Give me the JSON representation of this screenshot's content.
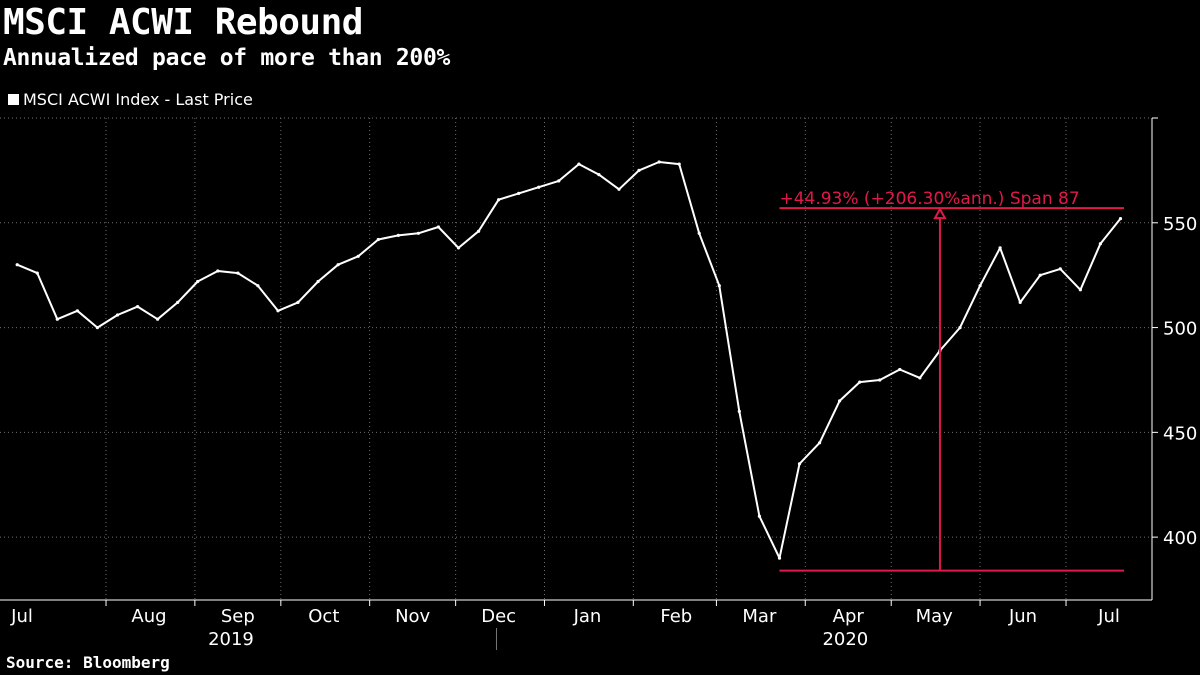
{
  "title": "MSCI ACWI Rebound",
  "subtitle": "Annualized pace of more than 200%",
  "legend": {
    "label": "MSCI ACWI Index - Last Price"
  },
  "source": "Source: Bloomberg",
  "colors": {
    "background": "#000000",
    "series": "#ffffff",
    "annotation": "#e0194b",
    "grid": "#6e6e6e"
  },
  "annotation": {
    "label": "+44.93% (+206.30%ann.) Span 87",
    "low": 384,
    "high": 557
  },
  "chart_data": {
    "type": "line",
    "title": "MSCI ACWI Rebound",
    "subtitle": "Annualized pace of more than 200%",
    "xlabel": "",
    "ylabel": "",
    "ylim": [
      370,
      600
    ],
    "yticks": [
      400,
      450,
      500,
      550
    ],
    "y_axis_side": "right",
    "grid": true,
    "legend_position": "top-left",
    "x_month_labels": [
      "Jul",
      "Aug",
      "Sep",
      "Oct",
      "Nov",
      "Dec",
      "Jan",
      "Feb",
      "Mar",
      "Apr",
      "May",
      "Jun",
      "Jul"
    ],
    "x_year_labels": [
      "2019",
      "2020"
    ],
    "series": [
      {
        "name": "MSCI ACWI Index - Last Price",
        "x": [
          "2019-07-01",
          "2019-07-08",
          "2019-07-15",
          "2019-07-22",
          "2019-07-29",
          "2019-08-05",
          "2019-08-12",
          "2019-08-19",
          "2019-08-26",
          "2019-09-02",
          "2019-09-09",
          "2019-09-16",
          "2019-09-23",
          "2019-09-30",
          "2019-10-07",
          "2019-10-14",
          "2019-10-21",
          "2019-10-28",
          "2019-11-04",
          "2019-11-11",
          "2019-11-18",
          "2019-11-25",
          "2019-12-02",
          "2019-12-09",
          "2019-12-16",
          "2019-12-23",
          "2019-12-30",
          "2020-01-06",
          "2020-01-13",
          "2020-01-20",
          "2020-01-27",
          "2020-02-03",
          "2020-02-10",
          "2020-02-17",
          "2020-02-24",
          "2020-03-02",
          "2020-03-09",
          "2020-03-16",
          "2020-03-23",
          "2020-03-30",
          "2020-04-06",
          "2020-04-13",
          "2020-04-20",
          "2020-04-27",
          "2020-05-04",
          "2020-05-11",
          "2020-05-18",
          "2020-05-25",
          "2020-06-01",
          "2020-06-08",
          "2020-06-15",
          "2020-06-22",
          "2020-06-29",
          "2020-07-06",
          "2020-07-13",
          "2020-07-20"
        ],
        "values": [
          530,
          526,
          504,
          508,
          500,
          506,
          510,
          504,
          512,
          522,
          527,
          526,
          520,
          508,
          512,
          522,
          530,
          534,
          542,
          544,
          545,
          548,
          538,
          546,
          561,
          564,
          567,
          570,
          578,
          573,
          566,
          575,
          579,
          578,
          545,
          520,
          460,
          410,
          390,
          435,
          445,
          465,
          474,
          475,
          480,
          476,
          489,
          500,
          520,
          538,
          512,
          525,
          528,
          518,
          540,
          552
        ]
      }
    ]
  }
}
